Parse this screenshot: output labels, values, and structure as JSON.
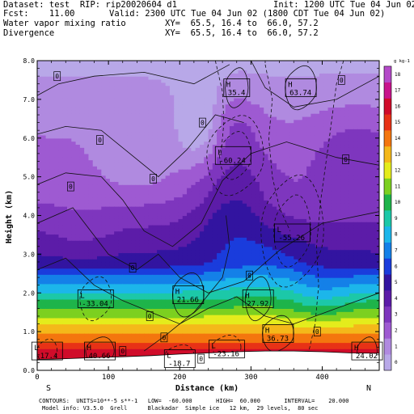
{
  "header": {
    "line1_left": "Dataset: test  RIP: rip20020604 d1",
    "line1_right": "Init: 1200 UTC Tue 04 Jun 02",
    "line2_left": "Fcst:    11.00",
    "line2_right": "Valid: 2300 UTC Tue 04 Jun 02 (1800 CDT Tue 04 Jun 02)",
    "line3_left": "Water vapor mixing ratio",
    "line3_right": "XY=  65.5, 16.4 to  66.0, 57.2",
    "line4_left": "Divergence",
    "line4_right": "XY=  65.5, 16.4 to  66.0, 57.2"
  },
  "chart_data": {
    "type": "heatmap",
    "xlabel": "Distance (km)",
    "ylabel": "Height (km)",
    "xlim": [
      0,
      480
    ],
    "ylim": [
      0,
      8
    ],
    "x_ticks": [
      "0",
      "100",
      "200",
      "300",
      "400"
    ],
    "y_ticks": [
      "0.0",
      "1.0",
      "2.0",
      "3.0",
      "4.0",
      "5.0",
      "6.0",
      "7.0",
      "8.0"
    ],
    "x_end_labels": {
      "left": "S",
      "right": "N"
    },
    "colorbar": {
      "unit": "g kg-1",
      "levels": [
        "0",
        "1",
        "2",
        "3",
        "4",
        "5",
        "6",
        "7",
        "8",
        "9",
        "10",
        "11",
        "12",
        "13",
        "14",
        "15",
        "16",
        "17",
        "18"
      ],
      "colors": [
        "#b8a8e8",
        "#b08ae0",
        "#9e5ad2",
        "#7e36be",
        "#5c1ca8",
        "#3214a0",
        "#1a3cdc",
        "#1480e8",
        "#1cb6ea",
        "#1cc8a8",
        "#1eb44a",
        "#7cd020",
        "#e4ec1c",
        "#f4b81a",
        "#f4760e",
        "#e83216",
        "#d00c2a",
        "#c8148c",
        "#b44ac8"
      ]
    },
    "extrema": [
      {
        "type": "H",
        "value": "35.4",
        "x": 280,
        "y": 7.3
      },
      {
        "type": "H",
        "value": "63.74",
        "x": 370,
        "y": 7.3
      },
      {
        "type": "L",
        "value": "-60.24",
        "x": 275,
        "y": 5.55
      },
      {
        "type": "L",
        "value": "-55.26",
        "x": 358,
        "y": 3.55
      },
      {
        "type": "L",
        "value": "-33.04",
        "x": 82,
        "y": 1.85
      },
      {
        "type": "H",
        "value": "21.66",
        "x": 212,
        "y": 1.95
      },
      {
        "type": "H",
        "value": "27.92",
        "x": 310,
        "y": 1.85
      },
      {
        "type": "H",
        "value": "36.73",
        "x": 338,
        "y": 0.95
      },
      {
        "type": "L",
        "value": "-17.4",
        "x": 14,
        "y": 0.5
      },
      {
        "type": "H",
        "value": "40.66",
        "x": 88,
        "y": 0.5
      },
      {
        "type": "L",
        "value": "-18.7",
        "x": 200,
        "y": 0.3
      },
      {
        "type": "L",
        "value": "-23.16",
        "x": 266,
        "y": 0.55
      },
      {
        "type": "H",
        "value": "24.02",
        "x": 463,
        "y": 0.5
      }
    ],
    "zero_labels": [
      {
        "text": "0",
        "x": 28,
        "y": 7.6
      },
      {
        "text": "0",
        "x": 427,
        "y": 7.5
      },
      {
        "text": "0",
        "x": 232,
        "y": 6.4
      },
      {
        "text": "0",
        "x": 88,
        "y": 5.95
      },
      {
        "text": "0",
        "x": 433,
        "y": 5.45
      },
      {
        "text": "0",
        "x": 47,
        "y": 4.75
      },
      {
        "text": "0",
        "x": 163,
        "y": 4.95
      },
      {
        "text": "0",
        "x": 134,
        "y": 2.65
      },
      {
        "text": "0",
        "x": 298,
        "y": 2.45
      },
      {
        "text": "0",
        "x": 158,
        "y": 1.4
      },
      {
        "text": "0",
        "x": 178,
        "y": 0.85
      },
      {
        "text": "0",
        "x": 393,
        "y": 1.0
      },
      {
        "text": "0",
        "x": 230,
        "y": 0.3
      },
      {
        "text": "0",
        "x": 120,
        "y": 0.5
      }
    ]
  },
  "footer": {
    "line1": "CONTOURS:  UNITS=10**-5 s**-1   LOW=  -60.000       HIGH=  60.000       INTERVAL=    20.000",
    "line2": "Model info: V3.5.0  Grell      Blackadar  Simple ice   12 km,  29 levels,  80 sec"
  }
}
